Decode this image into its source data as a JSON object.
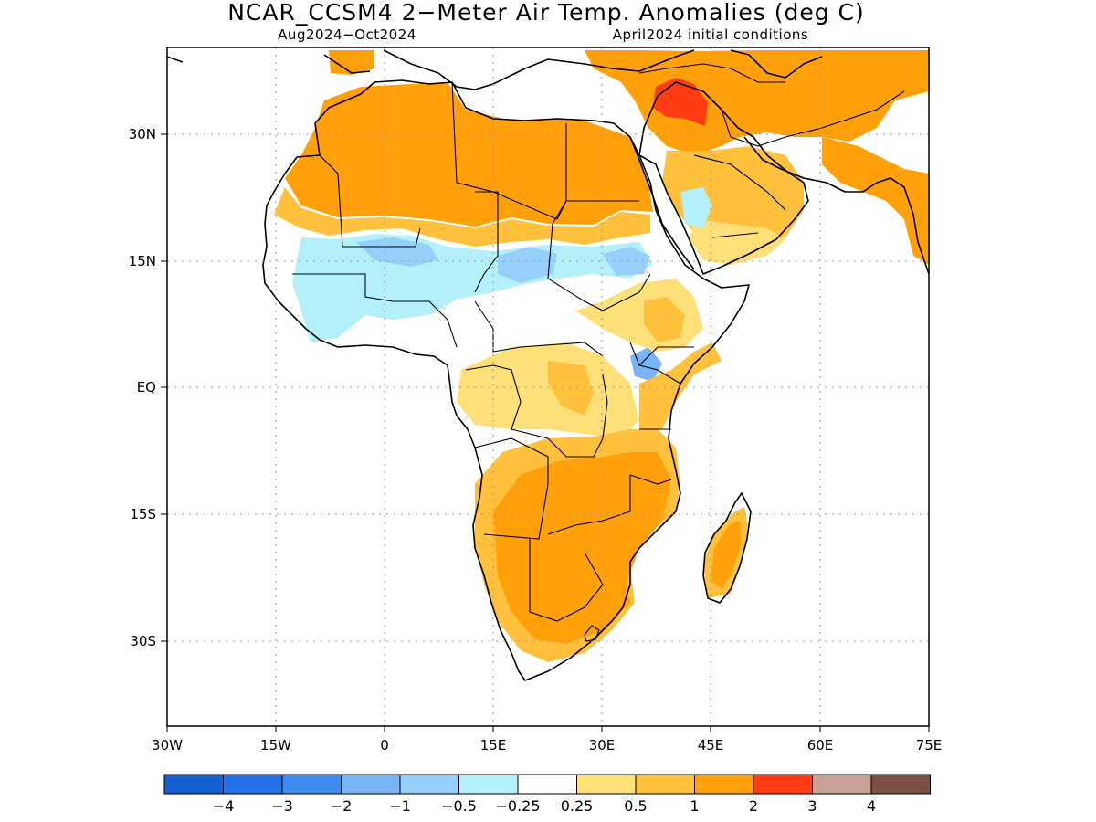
{
  "title": "NCAR_CCSM4 2−Meter Air Temp. Anomalies (deg C)",
  "subtitle_left": "Aug2024−Oct2024",
  "subtitle_right": "April2024 initial conditions",
  "map": {
    "region": "Africa and Middle East",
    "lon_range": [
      -30,
      75
    ],
    "lat_range": [
      -41,
      40
    ],
    "grid": "dotted",
    "lon_ticks": [
      {
        "value": -30,
        "label": "30W"
      },
      {
        "value": -15,
        "label": "15W"
      },
      {
        "value": 0,
        "label": "0"
      },
      {
        "value": 15,
        "label": "15E"
      },
      {
        "value": 30,
        "label": "30E"
      },
      {
        "value": 45,
        "label": "45E"
      },
      {
        "value": 60,
        "label": "60E"
      },
      {
        "value": 75,
        "label": "75E"
      }
    ],
    "lat_ticks": [
      {
        "value": 30,
        "label": "30N"
      },
      {
        "value": 15,
        "label": "15N"
      },
      {
        "value": 0,
        "label": "EQ"
      },
      {
        "value": -15,
        "label": "15S"
      },
      {
        "value": -30,
        "label": "30S"
      }
    ]
  },
  "colorbar": {
    "colors": [
      "#1560d0",
      "#2470e8",
      "#3c8cf0",
      "#78b4f8",
      "#96d0fa",
      "#b4f0fa",
      "#ffffff",
      "#ffe078",
      "#ffc03c",
      "#ffa00a",
      "#ff3c14",
      "#c8a096",
      "#7a5044"
    ],
    "labels": [
      "−4",
      "−3",
      "−2",
      "−1",
      "−0.5",
      "−0.25",
      "0.25",
      "0.5",
      "1",
      "2",
      "3",
      "4"
    ]
  },
  "colors": {
    "sea": "#ffffff",
    "anomaly_2": "#ffa00a",
    "anomaly_1": "#ffc03c",
    "anomaly_05": "#ffe078",
    "anomaly_3": "#ff3c14",
    "anomaly_neg025": "#b4f0fa",
    "anomaly_neg05": "#96d0fa",
    "anomaly_neg1": "#78b4f8",
    "coastline": "#000000"
  }
}
